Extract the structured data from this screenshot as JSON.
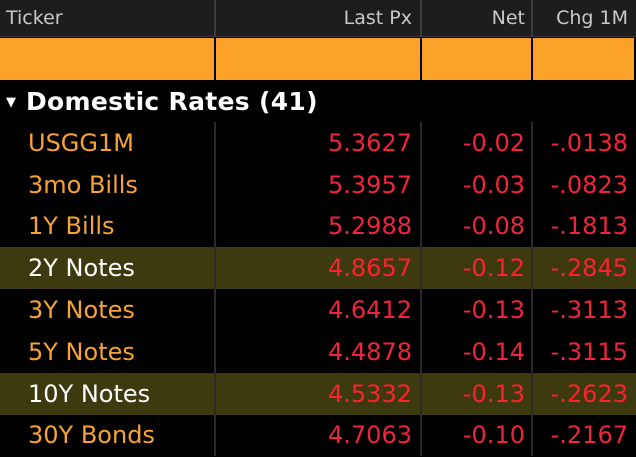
{
  "columns": {
    "ticker": "Ticker",
    "last_px": "Last Px",
    "net": "Net",
    "chg_1m": "Chg 1M"
  },
  "group": {
    "title": "Domestic Rates (41)",
    "caret_icon": "caret-down-icon",
    "expanded": true
  },
  "colors": {
    "header_bg": "#1d1d1d",
    "input_strip": "#fca128",
    "ticker_text": "#f7a336",
    "negative_text": "#f0243a",
    "highlight_row_bg": "#3d3a0f"
  },
  "rows": [
    {
      "ticker": "USGG1M",
      "last_px": "5.3627",
      "net": "-0.02",
      "chg_1m": "-.0138",
      "highlighted": false
    },
    {
      "ticker": "3mo Bills",
      "last_px": "5.3957",
      "net": "-0.03",
      "chg_1m": "-.0823",
      "highlighted": false
    },
    {
      "ticker": "1Y Bills",
      "last_px": "5.2988",
      "net": "-0.08",
      "chg_1m": "-.1813",
      "highlighted": false
    },
    {
      "ticker": "2Y Notes",
      "last_px": "4.8657",
      "net": "-0.12",
      "chg_1m": "-.2845",
      "highlighted": true
    },
    {
      "ticker": "3Y Notes",
      "last_px": "4.6412",
      "net": "-0.13",
      "chg_1m": "-.3113",
      "highlighted": false
    },
    {
      "ticker": "5Y Notes",
      "last_px": "4.4878",
      "net": "-0.14",
      "chg_1m": "-.3115",
      "highlighted": false
    },
    {
      "ticker": "10Y Notes",
      "last_px": "4.5332",
      "net": "-0.13",
      "chg_1m": "-.2623",
      "highlighted": true
    },
    {
      "ticker": "30Y Bonds",
      "last_px": "4.7063",
      "net": "-0.10",
      "chg_1m": "-.2167",
      "highlighted": false
    }
  ]
}
